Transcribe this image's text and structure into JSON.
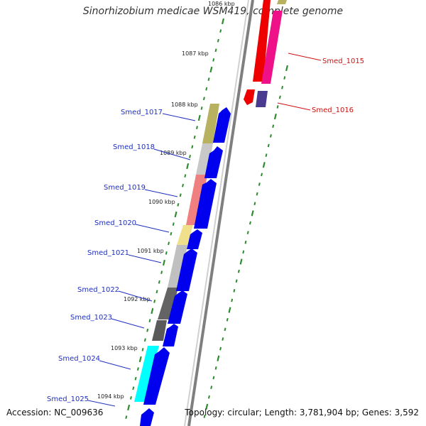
{
  "title": "Sinorhizobium medicae WSM419, complete genome",
  "footer": {
    "accession": "Accession: NC_009636",
    "summary": "Topology: circular; Length: 3,781,904 bp; Genes: 3,592"
  },
  "colors": {
    "backbone": "#8a8a8a",
    "forward_arrow": "#0000ee",
    "tick": "#2e8b2e",
    "left_label": "#1f2fbf",
    "right_label": "#cc1111",
    "reverse_gene": "#ee0000",
    "pink_gene": "#ee1188"
  },
  "kbp_labels": [
    "1086 kbp",
    "1087 kbp",
    "1088 kbp",
    "1089 kbp",
    "1090 kbp",
    "1091 kbp",
    "1092 kbp",
    "1093 kbp",
    "1094 kbp"
  ],
  "left_genes": [
    {
      "name": "Smed_1017",
      "color": "#b7b160"
    },
    {
      "name": "Smed_1018",
      "color": "#c8c8c8"
    },
    {
      "name": "Smed_1019",
      "color": "#f08080"
    },
    {
      "name": "Smed_1020",
      "color": "#f0e08c"
    },
    {
      "name": "Smed_1021",
      "color": "#c0c0c0"
    },
    {
      "name": "Smed_1022",
      "color": "#646464"
    },
    {
      "name": "Smed_1023",
      "color": "#5a5a5a"
    },
    {
      "name": "Smed_1024",
      "color": "#00ffff"
    },
    {
      "name": "Smed_1025",
      "color": "#0000ee"
    }
  ],
  "right_genes": [
    {
      "name": "Smed_1015"
    },
    {
      "name": "Smed_1016"
    }
  ]
}
